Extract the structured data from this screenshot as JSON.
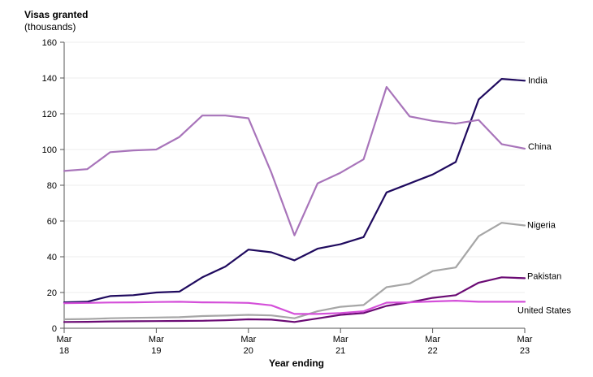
{
  "chart_data": {
    "type": "line",
    "ylabel": "Visas granted",
    "yunit": "(thousands)",
    "xlabel": "Year ending",
    "ylim": [
      0,
      160
    ],
    "yticks": [
      0,
      20,
      40,
      60,
      80,
      100,
      120,
      140,
      160
    ],
    "xticks": [
      {
        "month": "Mar",
        "year": "18"
      },
      {
        "month": "Mar",
        "year": "19"
      },
      {
        "month": "Mar",
        "year": "20"
      },
      {
        "month": "Mar",
        "year": "21"
      },
      {
        "month": "Mar",
        "year": "22"
      },
      {
        "month": "Mar",
        "year": "23"
      }
    ],
    "x": [
      "Mar 18",
      "Jun 18",
      "Sep 18",
      "Dec 18",
      "Mar 19",
      "Jun 19",
      "Sep 19",
      "Dec 19",
      "Mar 20",
      "Jun 20",
      "Sep 20",
      "Dec 20",
      "Mar 21",
      "Jun 21",
      "Sep 21",
      "Dec 21",
      "Mar 22",
      "Jun 22",
      "Sep 22",
      "Dec 22",
      "Mar 23"
    ],
    "series": [
      {
        "name": "India",
        "color": "#1f0a5e",
        "values": [
          14.5,
          14.8,
          18,
          18.5,
          20,
          20.5,
          28.5,
          34.5,
          44,
          42.5,
          38,
          44.5,
          47,
          51,
          76,
          81,
          86,
          93,
          128,
          139.5,
          138.5
        ]
      },
      {
        "name": "China",
        "color": "#a874ba",
        "values": [
          88,
          89,
          98.5,
          99.5,
          100,
          107,
          119,
          119,
          117.5,
          87,
          52,
          81,
          87,
          94.5,
          135,
          118.5,
          116,
          114.5,
          116.5,
          103,
          100.5
        ]
      },
      {
        "name": "Nigeria",
        "color": "#a6a6a6",
        "values": [
          5,
          5.2,
          5.6,
          5.8,
          6,
          6.2,
          6.8,
          7.1,
          7.5,
          7.2,
          5.6,
          9.5,
          12,
          13,
          23,
          25,
          32,
          34,
          51.5,
          59,
          57.5
        ]
      },
      {
        "name": "Pakistan",
        "color": "#6b0b74",
        "values": [
          3.5,
          3.6,
          3.8,
          3.9,
          4,
          4.1,
          4.2,
          4.5,
          5,
          4.8,
          3.5,
          5.5,
          7.5,
          8.5,
          12.5,
          14.5,
          17,
          18.5,
          25.5,
          28.5,
          28
        ]
      },
      {
        "name": "United States",
        "color": "#d44fd9",
        "values": [
          14,
          14.2,
          14.4,
          14.5,
          14.7,
          14.8,
          14.5,
          14.4,
          14.2,
          12.8,
          8,
          8,
          8.5,
          9.5,
          14.3,
          14.5,
          15,
          15.4,
          14.8,
          14.8,
          14.8
        ]
      }
    ]
  }
}
